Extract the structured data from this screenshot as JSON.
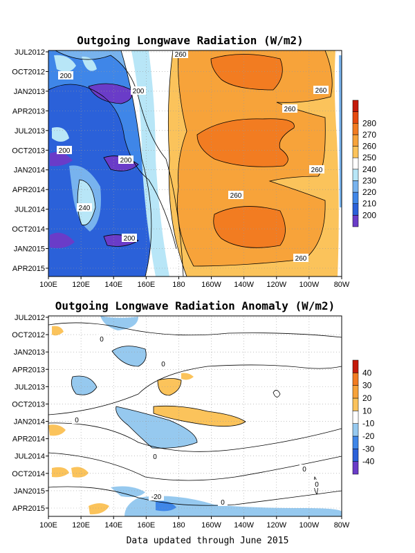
{
  "colors": {
    "olr": [
      "#6a3cc8",
      "#2b61d9",
      "#3f86e8",
      "#78b3ee",
      "#b8e6f7",
      "#ffffff",
      "#fbc35b",
      "#f7a33a",
      "#f27c21",
      "#e64a0f",
      "#c41a0a"
    ],
    "anom": [
      "#6a3cc8",
      "#2b61d9",
      "#3f86e8",
      "#96c9ef",
      "#ffffff",
      "#fbc35b",
      "#f7a33a",
      "#f27c21",
      "#c41a0a"
    ]
  },
  "chart_data": [
    {
      "type": "heatmap",
      "title": "Outgoing Longwave Radiation (W/m2)",
      "x_ticks": [
        "100E",
        "120E",
        "140E",
        "160E",
        "180",
        "160W",
        "140W",
        "120W",
        "100W",
        "80W"
      ],
      "y_ticks": [
        "JUL2012",
        "OCT2012",
        "JAN2013",
        "APR2013",
        "JUL2013",
        "OCT2013",
        "JAN2014",
        "APR2014",
        "JUL2014",
        "OCT2014",
        "JAN2015",
        "APR2015"
      ],
      "colorbar_levels": [
        "200",
        "210",
        "220",
        "230",
        "240",
        "250",
        "260",
        "270",
        "280"
      ],
      "contour_labels": [
        "200",
        "200",
        "200",
        "200",
        "200",
        "240",
        "260",
        "260",
        "260",
        "260",
        "260",
        "260"
      ],
      "grid": true
    },
    {
      "type": "heatmap",
      "title": "Outgoing Longwave Radiation Anomaly (W/m2)",
      "x_ticks": [
        "100E",
        "120E",
        "140E",
        "160E",
        "180",
        "160W",
        "140W",
        "120W",
        "100W",
        "80W"
      ],
      "y_ticks": [
        "JUL2012",
        "OCT2012",
        "JAN2013",
        "APR2013",
        "JUL2013",
        "OCT2013",
        "JAN2014",
        "APR2014",
        "JUL2014",
        "OCT2014",
        "JAN2015",
        "APR2015"
      ],
      "colorbar_levels": [
        "-40",
        "-30",
        "-20",
        "-10",
        "10",
        "20",
        "30",
        "40"
      ],
      "contour_labels": [
        "0",
        "0",
        "0",
        "0",
        "0",
        "0",
        "0",
        "-20"
      ],
      "grid": true
    }
  ],
  "footer": "Data updated through June 2015"
}
